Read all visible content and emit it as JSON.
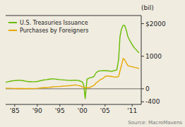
{
  "chart_data": {
    "type": "line",
    "title": "(bil)",
    "annotations": [
      "Source: MacroMavens"
    ],
    "background_color": "#f0ece0",
    "xlim": [
      1983,
      2013
    ],
    "xticks": [
      {
        "value": 1985,
        "label": "'85"
      },
      {
        "value": 1990,
        "label": "'90"
      },
      {
        "value": 1995,
        "label": "'95"
      },
      {
        "value": 2000,
        "label": "'00"
      },
      {
        "value": 2005,
        "label": "'05"
      },
      {
        "value": 2011,
        "label": "'11"
      }
    ],
    "ylim": [
      -480,
      2250
    ],
    "yticks": [
      {
        "value": 2000,
        "label": "$2000"
      },
      1000,
      0,
      -400
    ],
    "grid": false,
    "legend": "upper left",
    "series": [
      {
        "name": "U.S. Treasuries Issuance",
        "color": "#66bb00",
        "x": [
          1983.0,
          1983.5,
          1984.0,
          1984.5,
          1985.0,
          1985.5,
          1986.0,
          1986.5,
          1987.0,
          1987.5,
          1988.0,
          1988.5,
          1989.0,
          1989.5,
          1990.0,
          1990.5,
          1991.0,
          1991.5,
          1992.0,
          1992.5,
          1993.0,
          1993.5,
          1994.0,
          1994.5,
          1995.0,
          1995.5,
          1996.0,
          1996.5,
          1997.0,
          1997.5,
          1998.0,
          1998.5,
          1999.0,
          1999.5,
          2000.0,
          2000.3,
          2000.6,
          2001.0,
          2001.5,
          2002.0,
          2002.5,
          2003.0,
          2003.5,
          2004.0,
          2004.5,
          2005.0,
          2005.5,
          2006.0,
          2006.5,
          2007.0,
          2007.3,
          2007.6,
          2008.0,
          2008.3,
          2008.6,
          2009.0,
          2009.3,
          2009.5,
          2009.8,
          2010.0,
          2010.3,
          2010.6,
          2011.0,
          2011.3,
          2011.6,
          2012.0,
          2012.5
        ],
        "values": [
          200,
          215,
          230,
          245,
          250,
          258,
          265,
          258,
          245,
          232,
          220,
          218,
          215,
          218,
          225,
          240,
          258,
          272,
          280,
          290,
          300,
          308,
          298,
          288,
          280,
          275,
          270,
          265,
          260,
          258,
          265,
          263,
          260,
          235,
          210,
          100,
          -300,
          290,
          330,
          350,
          370,
          490,
          545,
          552,
          555,
          558,
          555,
          543,
          538,
          558,
          570,
          580,
          900,
          1600,
          1820,
          1950,
          1950,
          1880,
          1750,
          1620,
          1530,
          1450,
          1360,
          1290,
          1240,
          1180,
          1100
        ]
      },
      {
        "name": "Purchases by Foreigners",
        "color": "#e6a800",
        "x": [
          1983.0,
          1983.5,
          1984.0,
          1984.5,
          1985.0,
          1985.5,
          1986.0,
          1986.5,
          1987.0,
          1987.5,
          1988.0,
          1988.5,
          1989.0,
          1989.5,
          1990.0,
          1990.5,
          1991.0,
          1991.5,
          1992.0,
          1992.5,
          1993.0,
          1993.5,
          1994.0,
          1994.5,
          1995.0,
          1995.5,
          1996.0,
          1996.5,
          1997.0,
          1997.5,
          1998.0,
          1998.5,
          1999.0,
          1999.5,
          2000.0,
          2000.5,
          2001.0,
          2001.5,
          2002.0,
          2002.5,
          2003.0,
          2003.5,
          2004.0,
          2004.5,
          2005.0,
          2005.5,
          2006.0,
          2006.5,
          2007.0,
          2007.5,
          2008.0,
          2008.3,
          2008.6,
          2009.0,
          2009.3,
          2009.6,
          2010.0,
          2010.3,
          2010.6,
          2011.0,
          2011.3,
          2011.6,
          2012.0,
          2012.5
        ],
        "values": [
          20,
          15,
          15,
          10,
          10,
          8,
          10,
          8,
          8,
          5,
          7,
          8,
          5,
          10,
          15,
          22,
          28,
          33,
          36,
          42,
          52,
          62,
          65,
          70,
          73,
          78,
          85,
          90,
          93,
          98,
          112,
          118,
          102,
          90,
          58,
          28,
          38,
          32,
          70,
          95,
          175,
          230,
          285,
          315,
          375,
          395,
          388,
          375,
          362,
          358,
          380,
          550,
          700,
          930,
          900,
          820,
          720,
          700,
          688,
          678,
          665,
          655,
          645,
          620
        ]
      }
    ]
  }
}
